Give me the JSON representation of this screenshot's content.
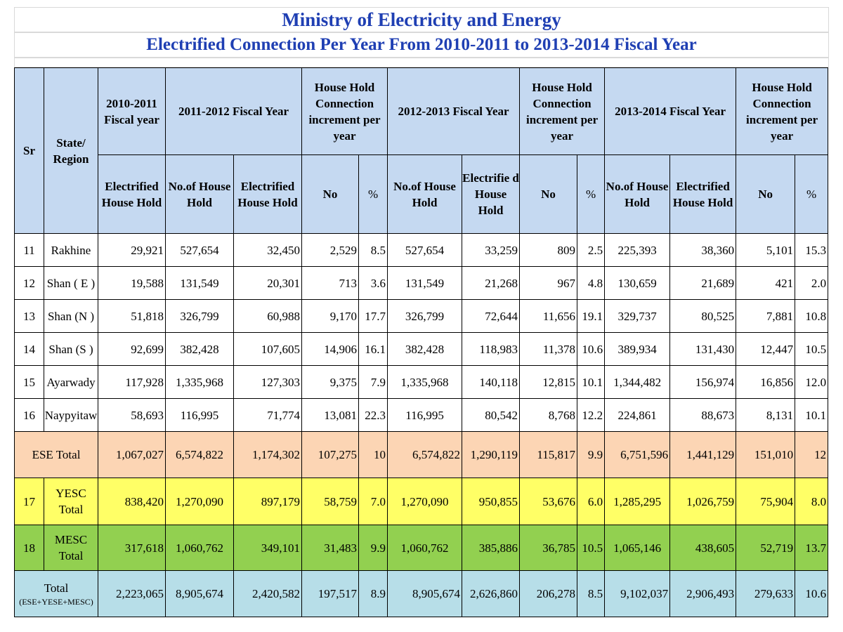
{
  "title": "Ministry of Electricity and Energy",
  "subtitle": "Electrified Connection Per Year From 2010-2011 to 2013-2014 Fiscal Year",
  "headers": {
    "sr": "Sr",
    "state_region": "State/ Region",
    "fy_2010": "2010-2011 Fiscal year",
    "fy_2011": "2011-2012 Fiscal Year",
    "fy_2012": "2012-2013 Fiscal Year",
    "fy_2013": "2013-2014 Fiscal Year",
    "increment": "House Hold Connection increment per year",
    "electrified_hh": "Electrified House Hold",
    "electrified_hh_split": "Electrifie d House Hold",
    "no_of_hh": "No.of House Hold",
    "no": "No",
    "pct": "%"
  },
  "rows": [
    {
      "sr": "11",
      "region": "Rakhine",
      "c": [
        "29,921",
        "527,654",
        "32,450",
        "2,529",
        "8.5",
        "527,654",
        "33,259",
        "809",
        "2.5",
        "225,393",
        "38,360",
        "5,101",
        "15.3"
      ]
    },
    {
      "sr": "12",
      "region": "Shan ( E )",
      "c": [
        "19,588",
        "131,549",
        "20,301",
        "713",
        "3.6",
        "131,549",
        "21,268",
        "967",
        "4.8",
        "130,659",
        "21,689",
        "421",
        "2.0"
      ]
    },
    {
      "sr": "13",
      "region": "Shan (N )",
      "c": [
        "51,818",
        "326,799",
        "60,988",
        "9,170",
        "17.7",
        "326,799",
        "72,644",
        "11,656",
        "19.1",
        "329,737",
        "80,525",
        "7,881",
        "10.8"
      ]
    },
    {
      "sr": "14",
      "region": "Shan (S )",
      "c": [
        "92,699",
        "382,428",
        "107,605",
        "14,906",
        "16.1",
        "382,428",
        "118,983",
        "11,378",
        "10.6",
        "389,934",
        "131,430",
        "12,447",
        "10.5"
      ]
    },
    {
      "sr": "15",
      "region": "Ayarwady",
      "c": [
        "117,928",
        "1,335,968",
        "127,303",
        "9,375",
        "7.9",
        "1,335,968",
        "140,118",
        "12,815",
        "10.1",
        "1,344,482",
        "156,974",
        "16,856",
        "12.0"
      ]
    },
    {
      "sr": "16",
      "region": "Naypyitaw",
      "c": [
        "58,693",
        "116,995",
        "71,774",
        "13,081",
        "22.3",
        "116,995",
        "80,542",
        "8,768",
        "12.2",
        "224,861",
        "88,673",
        "8,131",
        "10.1"
      ]
    }
  ],
  "ese_total": {
    "label": "ESE Total",
    "c": [
      "1,067,027",
      "6,574,822",
      "1,174,302",
      "107,275",
      "10",
      "6,574,822",
      "1,290,119",
      "115,817",
      "9.9",
      "6,751,596",
      "1,441,129",
      "151,010",
      "12"
    ]
  },
  "yesc_total": {
    "sr": "17",
    "label": "YESC Total",
    "c": [
      "838,420",
      "1,270,090",
      "897,179",
      "58,759",
      "7.0",
      "1,270,090",
      "950,855",
      "53,676",
      "6.0",
      "1,285,295",
      "1,026,759",
      "75,904",
      "8.0"
    ]
  },
  "mesc_total": {
    "sr": "18",
    "label": "MESC Total",
    "c": [
      "317,618",
      "1,060,762",
      "349,101",
      "31,483",
      "9.9",
      "1,060,762",
      "385,886",
      "36,785",
      "10.5",
      "1,065,146",
      "438,605",
      "52,719",
      "13.7"
    ]
  },
  "grand_total": {
    "label": "Total",
    "sublabel": "(ESE+YESE+MESC)",
    "c": [
      "2,223,065",
      "8,905,674",
      "2,420,582",
      "197,517",
      "8.9",
      "8,905,674",
      "2,626,860",
      "206,278",
      "8.5",
      "9,102,037",
      "2,906,493",
      "279,633",
      "10.6"
    ]
  },
  "colors": {
    "title": "#1f3fb3",
    "header": "#c5d9f1",
    "ese": "#fcd5b4",
    "yesc": "#ffff66",
    "mesc": "#92d050",
    "total": "#b7dee8"
  }
}
